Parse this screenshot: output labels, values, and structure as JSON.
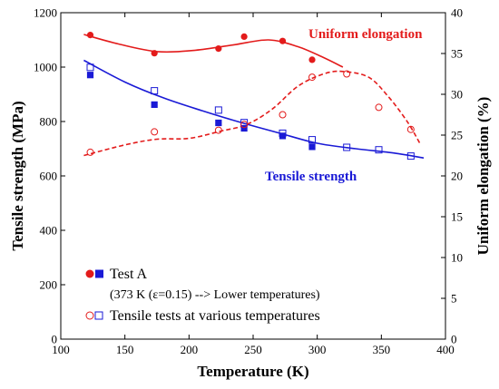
{
  "chart_data": {
    "type": "line",
    "xlabel": "Temperature (K)",
    "ylabel": "Tensile strength (MPa)",
    "y2label": "Uniform elongation (%)",
    "xlim": [
      100,
      400
    ],
    "ylim": [
      0,
      1200
    ],
    "y2lim": [
      0,
      40
    ],
    "xticks": [
      100,
      150,
      200,
      250,
      300,
      350,
      400
    ],
    "yticks": [
      0,
      200,
      400,
      600,
      800,
      1000,
      1200
    ],
    "y2ticks": [
      0,
      5,
      10,
      15,
      20,
      25,
      30,
      35,
      40
    ],
    "grid": false,
    "colors": {
      "red": "#e31b1b",
      "blue": "#1a1ad6"
    },
    "annotations": {
      "uniform": "Uniform elongation",
      "tensile": "Tensile strength"
    },
    "legend": {
      "test_a": "Test A",
      "test_a_note": "(373 K (ε=0.15) --> Lower temperatures)",
      "various": "Tensile tests at various temperatures"
    },
    "series": [
      {
        "axis": "left",
        "style": "filled-circle",
        "color": "red",
        "points": [
          [
            123,
            1118
          ],
          [
            173,
            1051
          ],
          [
            223,
            1068
          ],
          [
            243,
            1112
          ],
          [
            273,
            1096
          ],
          [
            296,
            1027
          ]
        ]
      },
      {
        "axis": "left",
        "style": "filled-square",
        "color": "blue",
        "points": [
          [
            123,
            971
          ],
          [
            173,
            862
          ],
          [
            223,
            795
          ],
          [
            243,
            775
          ],
          [
            273,
            747
          ],
          [
            296,
            707
          ]
        ]
      },
      {
        "axis": "left",
        "style": "open-square",
        "color": "blue",
        "points": [
          [
            123,
            999
          ],
          [
            173,
            913
          ],
          [
            223,
            842
          ],
          [
            243,
            796
          ],
          [
            273,
            757
          ],
          [
            296,
            733
          ],
          [
            323,
            705
          ],
          [
            348,
            696
          ],
          [
            373,
            673
          ]
        ]
      },
      {
        "axis": "right",
        "style": "open-circle",
        "color": "red",
        "points": [
          [
            123,
            22.9
          ],
          [
            173,
            25.4
          ],
          [
            223,
            25.6
          ],
          [
            243,
            26.3
          ],
          [
            273,
            27.5
          ],
          [
            296,
            32.1
          ],
          [
            323,
            32.5
          ],
          [
            348,
            28.4
          ],
          [
            373,
            25.7
          ]
        ]
      },
      {
        "axis": "left",
        "style": "solid-line",
        "color": "red",
        "points": [
          [
            118,
            1120
          ],
          [
            145,
            1085
          ],
          [
            175,
            1057
          ],
          [
            205,
            1062
          ],
          [
            235,
            1082
          ],
          [
            262,
            1100
          ],
          [
            285,
            1075
          ],
          [
            305,
            1035
          ],
          [
            320,
            1000
          ]
        ]
      },
      {
        "axis": "left",
        "style": "solid-line",
        "color": "blue",
        "points": [
          [
            118,
            1025
          ],
          [
            150,
            945
          ],
          [
            180,
            887
          ],
          [
            210,
            840
          ],
          [
            240,
            797
          ],
          [
            270,
            758
          ],
          [
            300,
            720
          ],
          [
            330,
            700
          ],
          [
            360,
            684
          ],
          [
            383,
            666
          ]
        ]
      },
      {
        "axis": "right",
        "style": "dashed-line",
        "color": "red",
        "points": [
          [
            118,
            22.5
          ],
          [
            150,
            23.8
          ],
          [
            175,
            24.5
          ],
          [
            200,
            24.6
          ],
          [
            225,
            25.5
          ],
          [
            245,
            26.3
          ],
          [
            265,
            28.2
          ],
          [
            285,
            31.0
          ],
          [
            305,
            32.5
          ],
          [
            320,
            32.8
          ],
          [
            340,
            32.1
          ],
          [
            355,
            29.8
          ],
          [
            370,
            26.7
          ],
          [
            380,
            24.0
          ]
        ]
      }
    ]
  }
}
